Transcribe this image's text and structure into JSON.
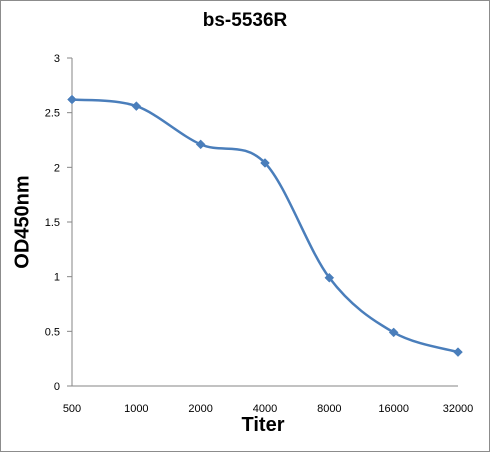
{
  "chart_data": {
    "type": "line",
    "title": "bs-5536R",
    "xlabel": "Titer",
    "ylabel": "OD450nm",
    "categories": [
      "500",
      "1000",
      "2000",
      "4000",
      "8000",
      "16000",
      "32000"
    ],
    "series": [
      {
        "values": [
          2.62,
          2.56,
          2.21,
          2.04,
          0.99,
          0.49,
          0.31
        ],
        "color": "#4a7ebb",
        "marker": "diamond"
      }
    ],
    "ylim": [
      0,
      3
    ],
    "yticks": [
      0,
      0.5,
      1,
      1.5,
      2,
      2.5,
      3
    ],
    "ytick_labels": [
      "0",
      "0.5",
      "1",
      "1.5",
      "2",
      "2.5",
      "3"
    ],
    "grid": false,
    "smooth": true,
    "legend": "none"
  }
}
